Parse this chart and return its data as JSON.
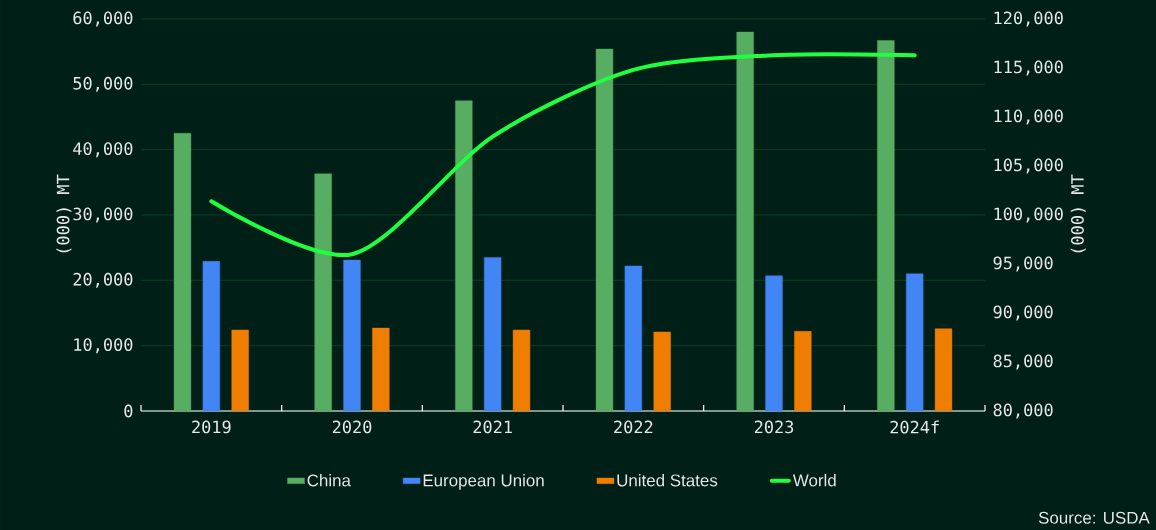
{
  "chart_data": {
    "type": "bar",
    "categories": [
      "2019",
      "2020",
      "2021",
      "2022",
      "2023",
      "2024f"
    ],
    "series": [
      {
        "name": "China",
        "color": "#57ad62",
        "values": [
          42500,
          36300,
          47500,
          55400,
          58000,
          56700
        ]
      },
      {
        "name": "European Union",
        "color": "#4285f4",
        "values": [
          22900,
          23100,
          23500,
          22200,
          20700,
          21000
        ]
      },
      {
        "name": "United States",
        "color": "#ef7d00",
        "values": [
          12400,
          12700,
          12400,
          12100,
          12200,
          12600
        ]
      },
      {
        "name": "World",
        "color": "#1fff40",
        "type": "line",
        "axis": "y2",
        "values": [
          101400,
          96000,
          108000,
          114800,
          116300,
          116300
        ]
      }
    ],
    "ylabel": "(000) MT",
    "y2label": "(000) MT",
    "ylim": [
      0,
      60000
    ],
    "yticks": [
      0,
      {
        "value": 10000,
        "label": "10,000"
      },
      {
        "value": 20000,
        "label": "20,000"
      },
      {
        "value": 30000,
        "label": "30,000"
      },
      {
        "value": 40000,
        "label": "40,000"
      },
      {
        "value": 50000,
        "label": "50,000"
      },
      {
        "value": 60000,
        "label": "60,000"
      }
    ],
    "y2lim": [
      80000,
      120000
    ],
    "y2ticks": [
      {
        "value": 80000,
        "label": "80,000"
      },
      {
        "value": 85000,
        "label": "85,000"
      },
      {
        "value": 90000,
        "label": "90,000"
      },
      {
        "value": 95000,
        "label": "95,000"
      },
      {
        "value": 100000,
        "label": "100,000"
      },
      {
        "value": 105000,
        "label": "105,000"
      },
      {
        "value": 110000,
        "label": "110,000"
      },
      {
        "value": 115000,
        "label": "115,000"
      },
      {
        "value": 120000,
        "label": "120,000"
      }
    ],
    "grid": "y",
    "legend": "bottom",
    "annotations": [
      "Source: USDA"
    ]
  }
}
